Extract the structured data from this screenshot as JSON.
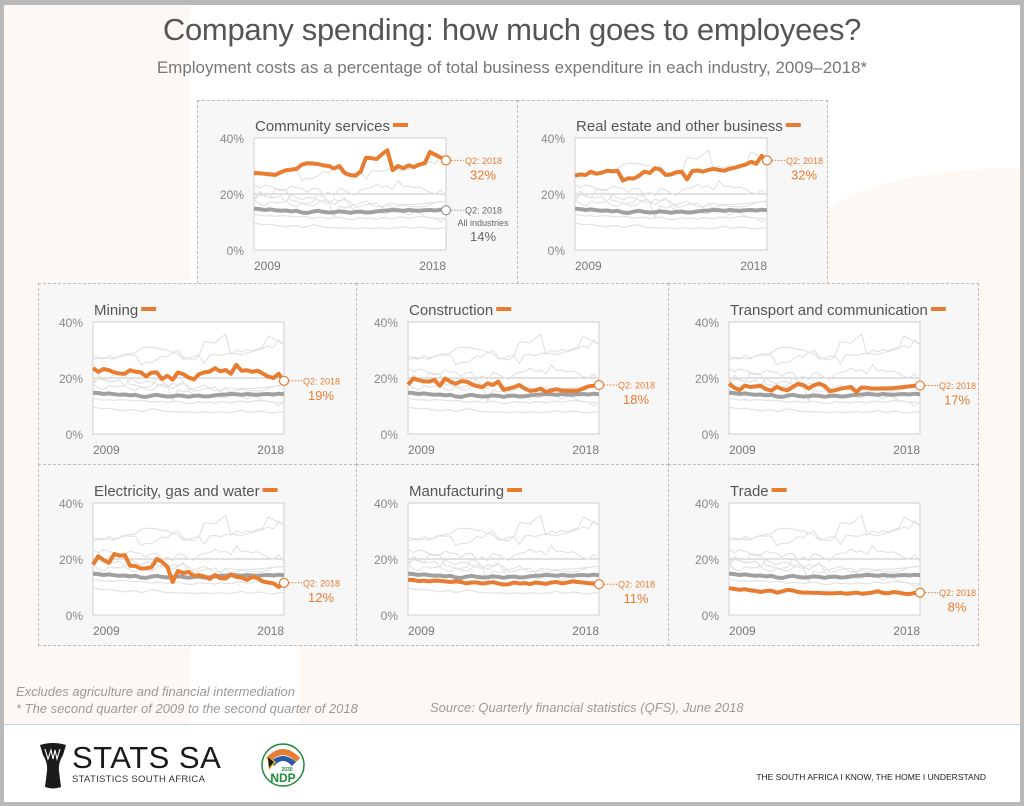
{
  "page": {
    "title": "Company spending: how much goes to employees?",
    "subtitle": "Employment costs as a percentage of total business expenditure in each industry, 2009–2018*",
    "note_excludes": "Excludes agriculture and financial intermediation",
    "note_period": "* The second quarter of 2009 to the second quarter of 2018",
    "source": "Source: Quarterly financial statistics (QFS), June 2018",
    "logo_main": "STATS SA",
    "logo_sub": "STATISTICS SOUTH AFRICA",
    "ndp_label": "NDP",
    "ndp_year": "2030",
    "tagline": "THE SOUTH AFRICA I KNOW, THE HOME I UNDERSTAND"
  },
  "colors": {
    "highlight": "#e87c30",
    "all_industries": "#a0a0a0",
    "context": "#e3e3e3",
    "axis_text": "#888888",
    "title_text": "#555555"
  },
  "chart_data": {
    "type": "line",
    "title": "Company spending: how much goes to employees?",
    "subtitle": "Employment costs as a percentage of total business expenditure in each industry, 2009–2018*",
    "xlabel": "",
    "ylabel": "",
    "x_start": "Q2 2009",
    "x_end": "Q2 2018",
    "x_tick_labels": [
      "2009",
      "2018"
    ],
    "y_tick_labels": [
      "0%",
      "20%",
      "40%"
    ],
    "ylim": [
      0,
      40
    ],
    "grid": "20% reference line",
    "end_label_prefix": "Q2: 2018",
    "all_industries_label": "All industries",
    "all_industries": {
      "name": "All industries",
      "final": "14%",
      "values": [
        14.8,
        14.6,
        14.3,
        14.5,
        14.2,
        14.0,
        14.1,
        13.8,
        14.0,
        13.4,
        13.2,
        13.7,
        14.0,
        13.6,
        13.4,
        13.5,
        13.8,
        13.6,
        13.3,
        13.6,
        13.7,
        13.4,
        13.5,
        13.8,
        14.0,
        14.1,
        14.3,
        14.2,
        14.0,
        14.3,
        14.1,
        14.0,
        14.2,
        14.3,
        14.1,
        14.4,
        14.2
      ]
    },
    "panels": [
      {
        "name": "Community services",
        "final": "32%",
        "values": [
          27.5,
          27.4,
          27.2,
          27.0,
          26.8,
          27.8,
          28.5,
          28.7,
          29.0,
          30.5,
          31.0,
          30.9,
          30.7,
          30.2,
          30.0,
          29.1,
          30.0,
          27.5,
          26.8,
          26.5,
          28.0,
          33.0,
          32.8,
          32.5,
          34.2,
          35.6,
          28.5,
          30.0,
          29.2,
          30.2,
          29.6,
          30.5,
          31.0,
          35.0,
          34.0,
          33.0,
          32.0
        ]
      },
      {
        "name": "Real estate and other business",
        "final": "32%",
        "values": [
          26.5,
          27.0,
          26.8,
          28.0,
          27.2,
          27.6,
          28.3,
          28.1,
          28.2,
          24.8,
          25.6,
          25.5,
          26.5,
          28.0,
          27.5,
          29.2,
          28.7,
          26.8,
          27.0,
          27.8,
          28.0,
          25.2,
          28.2,
          28.4,
          28.0,
          28.6,
          29.0,
          28.6,
          28.3,
          29.0,
          29.4,
          30.0,
          30.5,
          31.5,
          30.8,
          33.6,
          32.0
        ]
      },
      {
        "name": "Mining",
        "final": "19%",
        "values": [
          23.5,
          22.2,
          23.2,
          22.8,
          22.0,
          21.6,
          21.5,
          22.8,
          22.2,
          22.0,
          20.6,
          21.9,
          22.0,
          19.6,
          20.8,
          19.4,
          22.0,
          21.4,
          20.2,
          19.5,
          21.4,
          22.0,
          22.3,
          23.5,
          22.4,
          22.9,
          21.5,
          24.7,
          22.6,
          22.8,
          22.2,
          22.6,
          21.6,
          20.5,
          20.0,
          21.5,
          19.0
        ]
      },
      {
        "name": "Construction",
        "final": "18%",
        "values": [
          17.6,
          19.8,
          19.2,
          18.8,
          18.7,
          19.3,
          17.2,
          19.8,
          18.7,
          17.9,
          18.9,
          18.7,
          17.8,
          17.1,
          16.7,
          18.1,
          17.5,
          18.7,
          15.8,
          16.2,
          16.7,
          17.5,
          16.2,
          15.4,
          15.6,
          16.2,
          15.0,
          15.6,
          16.0,
          15.5,
          15.5,
          15.4,
          15.5,
          16.2,
          17.0,
          17.2,
          17.5
        ]
      },
      {
        "name": "Transport and communication",
        "final": "17%",
        "values": [
          18.0,
          16.5,
          15.7,
          17.3,
          16.8,
          17.0,
          17.2,
          16.0,
          15.5,
          16.9,
          16.0,
          15.6,
          16.8,
          17.9,
          17.5,
          16.2,
          17.4,
          18.0,
          17.2,
          15.3,
          15.6,
          16.2,
          16.5,
          16.8,
          15.0,
          16.6,
          16.5,
          16.2,
          16.2,
          16.3,
          16.3,
          16.4,
          16.6,
          16.8,
          17.0,
          17.3,
          17.3
        ]
      },
      {
        "name": "Electricity, gas and water",
        "final": "12%",
        "values": [
          18.0,
          21.0,
          19.6,
          18.6,
          21.8,
          21.2,
          21.4,
          17.6,
          17.5,
          16.6,
          16.7,
          17.0,
          20.0,
          19.0,
          17.3,
          11.8,
          15.7,
          15.0,
          15.4,
          14.0,
          14.2,
          13.8,
          12.9,
          14.3,
          13.1,
          13.0,
          14.5,
          13.6,
          13.4,
          12.5,
          13.6,
          13.2,
          12.0,
          11.6,
          11.3,
          10.0,
          11.5
        ]
      },
      {
        "name": "Manufacturing",
        "final": "11%",
        "values": [
          12.6,
          12.5,
          12.1,
          12.3,
          12.0,
          12.3,
          12.2,
          12.0,
          11.8,
          12.0,
          11.8,
          11.3,
          11.6,
          11.6,
          11.2,
          11.5,
          11.7,
          11.3,
          10.9,
          11.0,
          11.6,
          11.2,
          11.4,
          11.0,
          11.6,
          11.4,
          11.1,
          11.6,
          11.8,
          11.3,
          11.6,
          12.0,
          11.8,
          11.6,
          11.4,
          11.3,
          11.0
        ]
      },
      {
        "name": "Trade",
        "final": "8%",
        "values": [
          9.6,
          9.3,
          9.0,
          9.2,
          8.8,
          8.6,
          8.2,
          8.6,
          8.7,
          8.0,
          8.4,
          9.0,
          8.8,
          8.2,
          8.0,
          8.0,
          7.9,
          7.9,
          7.8,
          7.7,
          7.8,
          7.9,
          7.6,
          7.8,
          8.0,
          7.6,
          7.8,
          8.0,
          8.5,
          7.9,
          7.8,
          8.2,
          8.0,
          7.6,
          7.5,
          7.9,
          8.0
        ]
      }
    ]
  }
}
